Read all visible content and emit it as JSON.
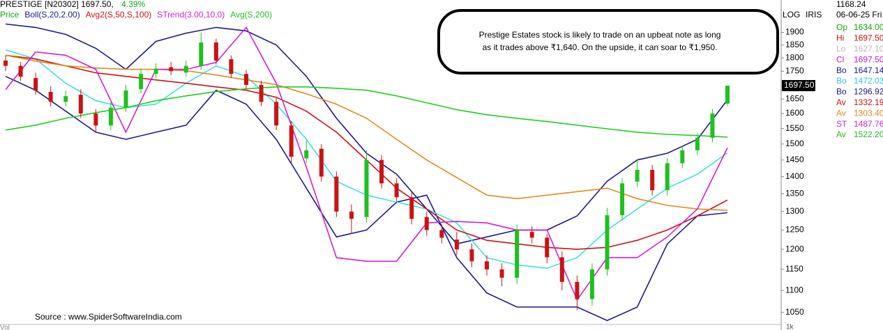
{
  "chart_data": {
    "type": "candlestick",
    "header": {
      "symbol": "PRESTIGE [N20302]",
      "price": "1697.50,",
      "change": "4.39%"
    },
    "legend": [
      {
        "text": "Price",
        "color": "#11a811"
      },
      {
        "text": "Boll(S,20,2.00)",
        "color": "#1a1a8c"
      },
      {
        "text": "Avg2(S,50,S,100)",
        "color": "#c81414"
      },
      {
        "text": "STrend(3.00,10,0)",
        "color": "#d21fd2"
      },
      {
        "text": "Avg(S,200)",
        "color": "#22bb22"
      }
    ],
    "annotation": [
      "Prestige Estates stock is likely to trade on an upbeat note as long",
      "as it trades above ₹1,640. On the upside, it can soar to ₹1,950."
    ],
    "source": "Source : www.SpiderSoftwareIndia.com",
    "scale_labels": [
      "LOG",
      "IRIS"
    ],
    "last_price_label": "1697.50",
    "vol_label": "Vol",
    "vol_axis_label": "1k",
    "log_scale": true,
    "ylim": [
      1025,
      2035
    ],
    "yticks": [
      1050,
      1100,
      1150,
      1200,
      1250,
      1300,
      1350,
      1400,
      1450,
      1500,
      1550,
      1600,
      1650,
      1750,
      1800,
      1850,
      1900
    ],
    "up_color": "#1fc01f",
    "down_color": "#c81414",
    "candles": {
      "open": [
        1790,
        1770,
        1725,
        1675,
        1640,
        1665,
        1600,
        1560,
        1620,
        1685,
        1740,
        1765,
        1745,
        1770,
        1860,
        1795,
        1740,
        1700,
        1640,
        1560,
        1455,
        1485,
        1400,
        1300,
        1285,
        1450,
        1380,
        1340,
        1285,
        1250,
        1225,
        1200,
        1170,
        1150,
        1130,
        1245,
        1230,
        1180,
        1120,
        1080,
        1150,
        1290,
        1385,
        1420,
        1360,
        1440,
        1480,
        1520,
        1634
      ],
      "high": [
        1810,
        1785,
        1745,
        1695,
        1680,
        1685,
        1615,
        1640,
        1700,
        1760,
        1780,
        1785,
        1790,
        1900,
        1875,
        1810,
        1755,
        1715,
        1655,
        1575,
        1510,
        1500,
        1415,
        1320,
        1480,
        1465,
        1395,
        1355,
        1300,
        1265,
        1245,
        1215,
        1185,
        1165,
        1265,
        1260,
        1240,
        1195,
        1135,
        1165,
        1310,
        1395,
        1450,
        1435,
        1455,
        1495,
        1535,
        1615,
        1697.5
      ],
      "low": [
        1750,
        1715,
        1665,
        1625,
        1625,
        1585,
        1540,
        1545,
        1605,
        1670,
        1725,
        1735,
        1730,
        1755,
        1775,
        1725,
        1685,
        1625,
        1545,
        1440,
        1440,
        1385,
        1285,
        1240,
        1270,
        1365,
        1325,
        1265,
        1235,
        1215,
        1185,
        1155,
        1135,
        1110,
        1115,
        1215,
        1165,
        1100,
        1055,
        1065,
        1135,
        1275,
        1370,
        1345,
        1345,
        1425,
        1465,
        1505,
        1627.1
      ],
      "close": [
        1770,
        1730,
        1680,
        1640,
        1660,
        1600,
        1560,
        1620,
        1680,
        1740,
        1760,
        1750,
        1770,
        1860,
        1790,
        1740,
        1700,
        1640,
        1560,
        1460,
        1480,
        1400,
        1300,
        1280,
        1450,
        1380,
        1340,
        1280,
        1250,
        1230,
        1200,
        1170,
        1150,
        1130,
        1250,
        1230,
        1180,
        1120,
        1080,
        1150,
        1290,
        1380,
        1420,
        1360,
        1440,
        1480,
        1520,
        1600,
        1697.5
      ]
    },
    "overlays": [
      {
        "color": "#1a1a8c",
        "values": [
          1934,
          1920,
          1892,
          1837,
          1757,
          1864,
          1897,
          1920,
          1906,
          1850,
          1731,
          1584,
          1471,
          1407,
          1307,
          1214,
          1232,
          1250,
          1250,
          1288,
          1386,
          1450,
          1471,
          1515,
          1647.14
        ]
      },
      {
        "color": "#1a1a8c",
        "values": [
          1731,
          1681,
          1608,
          1538,
          1515,
          1538,
          1561,
          1681,
          1632,
          1515,
          1366,
          1232,
          1250,
          1326,
          1346,
          1179,
          1094,
          1062,
          1062,
          1062,
          1032,
          1062,
          1214,
          1288,
          1296.92
        ]
      },
      {
        "color": "#3fe0e0",
        "values": [
          1831,
          1796,
          1706,
          1644,
          1620,
          1632,
          1706,
          1770,
          1731,
          1632,
          1515,
          1386,
          1346,
          1326,
          1307,
          1269,
          1179,
          1161,
          1153,
          1179,
          1250,
          1307,
          1366,
          1407,
          1472.03
        ]
      },
      {
        "color": "#c81414",
        "values": [
          1810,
          1796,
          1770,
          1744,
          1731,
          1718,
          1706,
          1693,
          1681,
          1656,
          1608,
          1538,
          1450,
          1366,
          1307,
          1250,
          1223,
          1214,
          1205,
          1200,
          1205,
          1223,
          1250,
          1288,
          1332.19
        ]
      },
      {
        "color": "#e08a1e",
        "values": [
          1810,
          1788,
          1770,
          1762,
          1757,
          1757,
          1752,
          1736,
          1718,
          1701,
          1668,
          1632,
          1584,
          1515,
          1450,
          1397,
          1346,
          1336,
          1346,
          1356,
          1366,
          1336,
          1317,
          1307,
          1303.4
        ]
      },
      {
        "color": "#d21fd2",
        "values": [
          1683,
          1823,
          1810,
          1757,
          1538,
          1757,
          1757,
          1783,
          1920,
          1706,
          1428,
          1179,
          1170,
          1170,
          1269,
          1273,
          1269,
          1250,
          1250,
          1078,
          1179,
          1179,
          1232,
          1307,
          1487.76
        ]
      },
      {
        "color": "#22cc22",
        "values": [
          1545,
          1561,
          1584,
          1603,
          1620,
          1644,
          1661,
          1676,
          1686,
          1693,
          1693,
          1688,
          1681,
          1661,
          1637,
          1613,
          1596,
          1584,
          1573,
          1561,
          1549,
          1538,
          1531,
          1527,
          1522.2
        ]
      }
    ],
    "panel": {
      "top": [
        "1168.24",
        "06-06-25 Fri"
      ],
      "rows": [
        {
          "label": "Op",
          "value": "1634.00",
          "color": "#11a811"
        },
        {
          "label": "Hi",
          "value": "1697.50",
          "color": "#c81414"
        },
        {
          "label": "Lo",
          "value": "1627.10",
          "color": "#b8b8b8"
        },
        {
          "label": "Cl",
          "value": "1697.50",
          "color": "#b81fb8"
        },
        {
          "label": "Bo",
          "value": "1647.14",
          "color": "#1a1a8c"
        },
        {
          "label": "Bo",
          "value": "1472.03",
          "color": "#2cc8d8"
        },
        {
          "label": "Bo",
          "value": "1296.92",
          "color": "#1a1a8c"
        },
        {
          "label": "Av",
          "value": "1332.19",
          "color": "#c81414"
        },
        {
          "label": "Av",
          "value": "1303.40",
          "color": "#e08a1e"
        },
        {
          "label": "ST",
          "value": "1487.76",
          "color": "#d21fd2"
        },
        {
          "label": "Av",
          "value": "1522.20",
          "color": "#22bb22"
        }
      ]
    }
  }
}
